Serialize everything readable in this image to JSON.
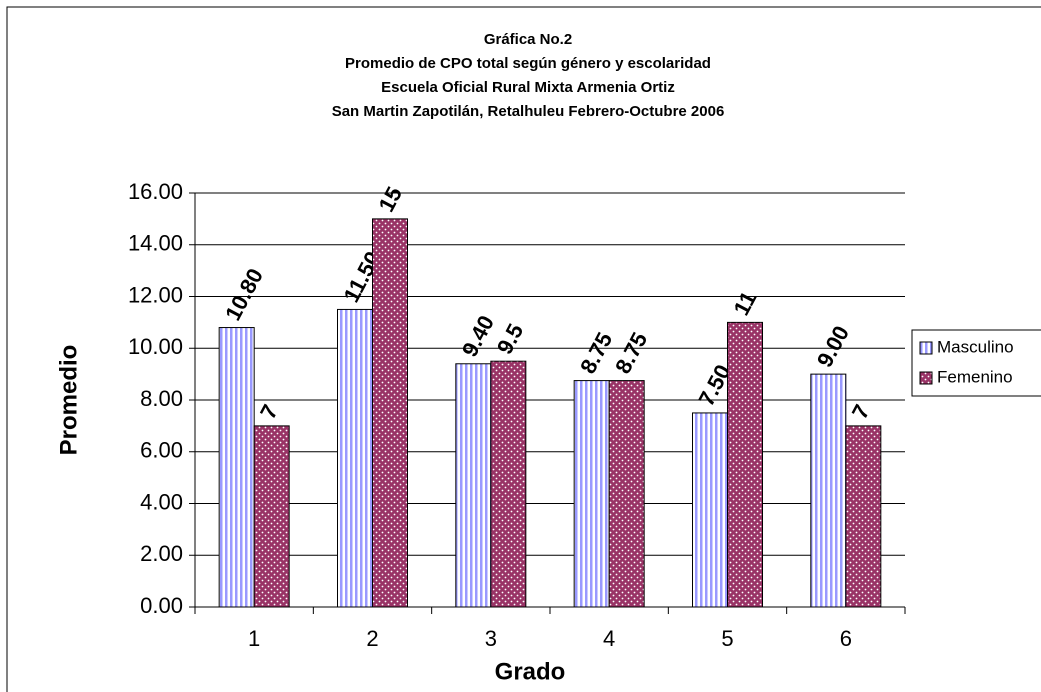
{
  "chart_data": {
    "type": "bar",
    "title": [
      "Gráfica No.2",
      "Promedio de CPO total según género y escolaridad",
      "Escuela Oficial Rural Mixta Armenia Ortiz",
      "San Martin Zapotilán, Retalhuleu Febrero-Octubre 2006"
    ],
    "x_label": "Grado",
    "y_label": "Promedio",
    "categories": [
      "1",
      "2",
      "3",
      "4",
      "5",
      "6"
    ],
    "series": [
      {
        "name": "Masculino",
        "color": "#9999ff",
        "values": [
          10.8,
          11.5,
          9.4,
          8.75,
          7.5,
          9.0
        ],
        "value_labels": [
          "10.80",
          "11.50",
          "9.40",
          "8.75",
          "7.50",
          "9.00"
        ]
      },
      {
        "name": "Femenino",
        "color": "#993366",
        "values": [
          7,
          15,
          9.5,
          8.75,
          11,
          7
        ]
      }
    ],
    "ylim": [
      0,
      16
    ],
    "yticks": [
      {
        "value": 0,
        "label": "0.00"
      },
      {
        "value": 2,
        "label": "2.00"
      },
      {
        "value": 4,
        "label": "4.00"
      },
      {
        "value": 6,
        "label": "6.00"
      },
      {
        "value": 8,
        "label": "8.00"
      },
      {
        "value": 10,
        "label": "10.00"
      },
      {
        "value": 12,
        "label": "12.00"
      },
      {
        "value": 14,
        "label": "14.00"
      },
      {
        "value": 16,
        "label": "16.00"
      }
    ],
    "grid": true,
    "legend": "right"
  }
}
